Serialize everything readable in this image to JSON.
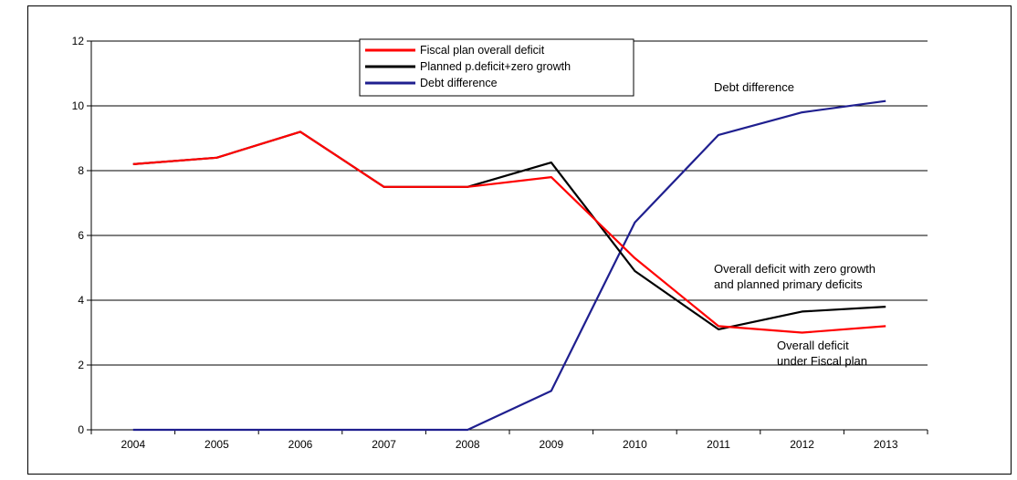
{
  "chart_data": {
    "type": "line",
    "x": [
      "2004",
      "2005",
      "2006",
      "2007",
      "2008",
      "2009",
      "2010",
      "2011",
      "2012",
      "2013"
    ],
    "ylim": [
      0,
      12
    ],
    "yticks": [
      0,
      2,
      4,
      6,
      8,
      10,
      12
    ],
    "grid": "horizontal",
    "legend_position": "top-center",
    "series": [
      {
        "name": "Fiscal plan overall deficit",
        "color": "#ff0000",
        "values": [
          8.2,
          8.4,
          9.2,
          7.5,
          7.5,
          7.8,
          5.3,
          3.2,
          3.0,
          3.2
        ]
      },
      {
        "name": "Planned p.deficit+zero growth",
        "color": "#000000",
        "values": [
          8.2,
          8.4,
          9.2,
          7.5,
          7.5,
          8.25,
          4.9,
          3.1,
          3.65,
          3.8
        ]
      },
      {
        "name": "Debt difference",
        "color": "#1f1f8f",
        "values": [
          0,
          0,
          0,
          0,
          0,
          1.2,
          6.4,
          9.1,
          9.8,
          10.15
        ]
      }
    ],
    "annotations": [
      {
        "id": "debt",
        "lines": [
          "Debt difference"
        ]
      },
      {
        "id": "zero",
        "lines": [
          "Overall deficit with zero growth",
          "and planned primary deficits"
        ]
      },
      {
        "id": "plan",
        "lines": [
          "Overall deficit",
          "under Fiscal plan"
        ]
      }
    ]
  }
}
